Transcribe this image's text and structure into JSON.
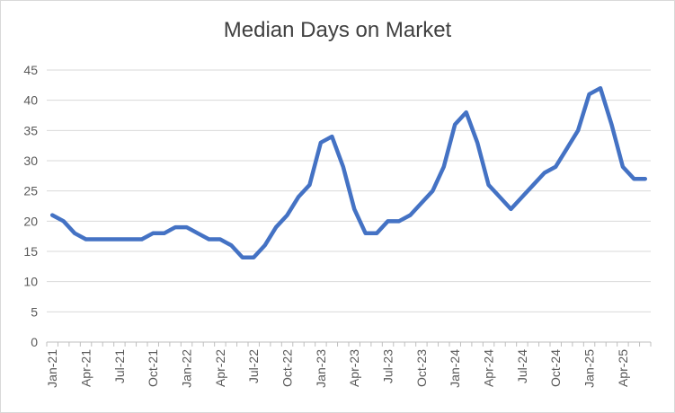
{
  "chart_data": {
    "type": "line",
    "title": "Median Days on Market",
    "xlabel": "",
    "ylabel": "",
    "ylim": [
      0,
      45
    ],
    "yticks": [
      0,
      5,
      10,
      15,
      20,
      25,
      30,
      35,
      40,
      45
    ],
    "grid": true,
    "legend": "none",
    "line_color": "#4472c4",
    "x_tick_labels": [
      "Jan-21",
      "Apr-21",
      "Jul-21",
      "Oct-21",
      "Jan-22",
      "Apr-22",
      "Jul-22",
      "Oct-22",
      "Jan-23",
      "Apr-23",
      "Jul-23",
      "Oct-23",
      "Jan-24",
      "Apr-24",
      "Jul-24",
      "Oct-24",
      "Jan-25",
      "Apr-25"
    ],
    "x": [
      "Jan-21",
      "Feb-21",
      "Mar-21",
      "Apr-21",
      "May-21",
      "Jun-21",
      "Jul-21",
      "Aug-21",
      "Sep-21",
      "Oct-21",
      "Nov-21",
      "Dec-21",
      "Jan-22",
      "Feb-22",
      "Mar-22",
      "Apr-22",
      "May-22",
      "Jun-22",
      "Jul-22",
      "Aug-22",
      "Sep-22",
      "Oct-22",
      "Nov-22",
      "Dec-22",
      "Jan-23",
      "Feb-23",
      "Mar-23",
      "Apr-23",
      "May-23",
      "Jun-23",
      "Jul-23",
      "Aug-23",
      "Sep-23",
      "Oct-23",
      "Nov-23",
      "Dec-23",
      "Jan-24",
      "Feb-24",
      "Mar-24",
      "Apr-24",
      "May-24",
      "Jun-24",
      "Jul-24",
      "Aug-24",
      "Sep-24",
      "Oct-24",
      "Nov-24",
      "Dec-24",
      "Jan-25",
      "Feb-25",
      "Mar-25",
      "Apr-25",
      "May-25",
      "Jun-25"
    ],
    "series": [
      {
        "values": [
          21,
          20,
          18,
          17,
          17,
          17,
          17,
          17,
          17,
          18,
          18,
          19,
          19,
          18,
          17,
          17,
          16,
          14,
          14,
          16,
          19,
          21,
          24,
          26,
          33,
          34,
          29,
          22,
          18,
          18,
          20,
          20,
          21,
          23,
          25,
          29,
          36,
          38,
          33,
          26,
          24,
          22,
          24,
          26,
          28,
          29,
          32,
          35,
          41,
          42,
          36,
          29,
          27,
          27
        ]
      }
    ]
  }
}
